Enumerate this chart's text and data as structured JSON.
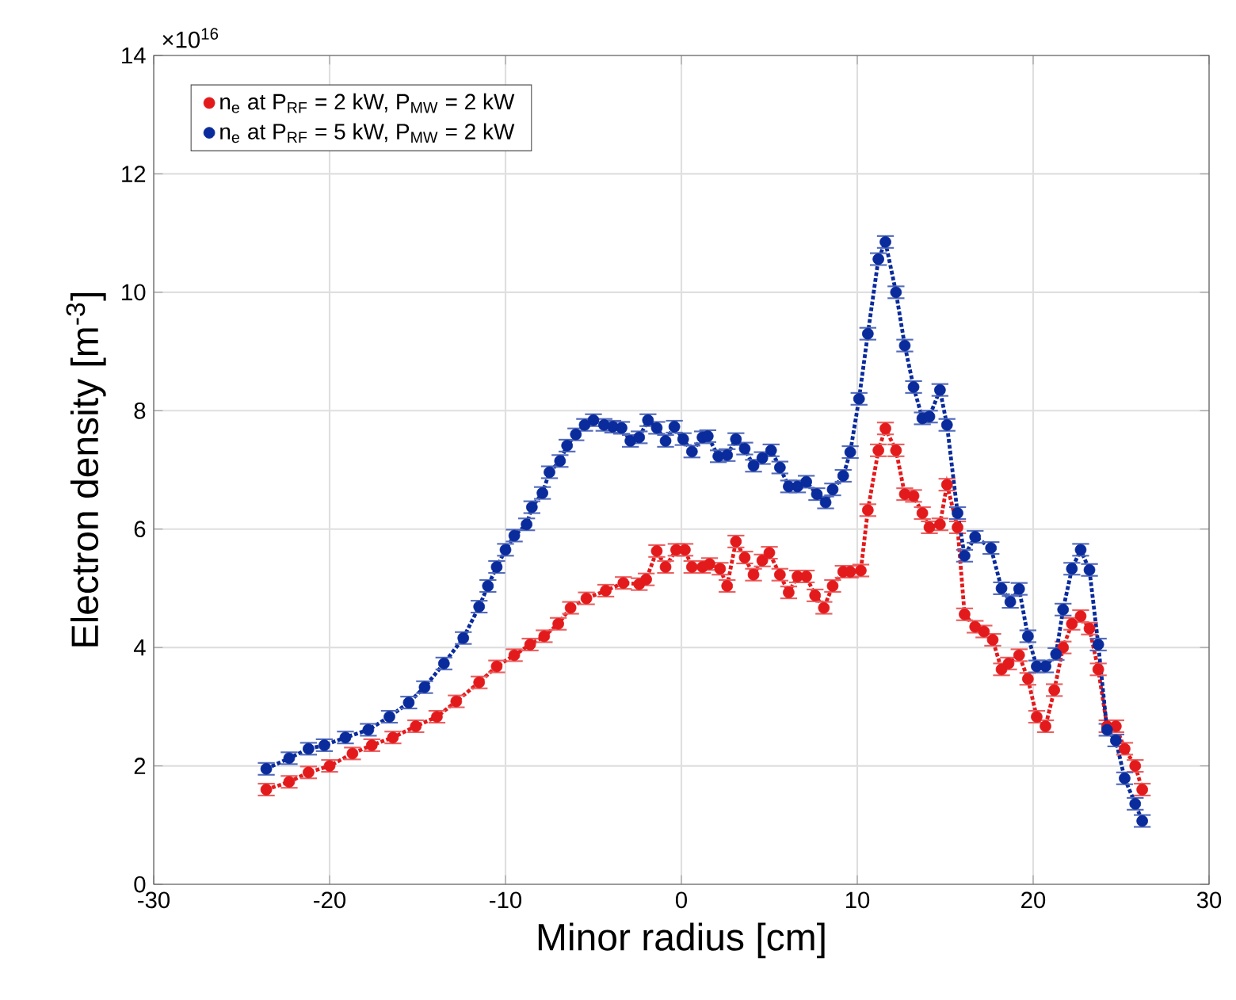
{
  "chart_data": {
    "type": "line",
    "xlabel": "Minor radius [cm]",
    "ylabel": "Electron density [m$^{-3}$]",
    "annotations": [
      "×10$^{16}$"
    ],
    "xlim": [
      -30,
      30
    ],
    "xticks": [
      -30,
      -20,
      -10,
      0,
      10,
      20,
      30
    ],
    "ylim": [
      0,
      14
    ],
    "yticks": [
      0,
      2,
      4,
      6,
      8,
      10,
      12,
      14
    ],
    "grid": true,
    "legend": "top left",
    "marker": "circle",
    "line_style": "dotted",
    "series": [
      {
        "name": "n$_{e}$ at P$_{RF}$ = 2 kW, P$_{MW}$ = 2 kW",
        "color": "#e31a1c",
        "x": [
          -23.6,
          -22.3,
          -21.2,
          -20.0,
          -18.7,
          -17.6,
          -16.4,
          -15.1,
          -13.9,
          -12.8,
          -11.5,
          -10.5,
          -9.5,
          -8.6,
          -7.8,
          -7.0,
          -6.3,
          -5.4,
          -4.3,
          -3.3,
          -2.4,
          -2.0,
          -1.4,
          -0.9,
          -0.3,
          0.2,
          0.6,
          1.2,
          1.6,
          2.2,
          2.6,
          3.1,
          3.6,
          4.1,
          4.6,
          5.0,
          5.6,
          6.1,
          6.6,
          7.1,
          7.6,
          8.1,
          8.6,
          9.2,
          9.6,
          10.2,
          10.6,
          11.2,
          11.6,
          12.2,
          12.7,
          13.2,
          13.7,
          14.1,
          14.7,
          15.1,
          15.7,
          16.1,
          16.7,
          17.2,
          17.7,
          18.2,
          18.6,
          19.2,
          19.7,
          20.2,
          20.7,
          21.2,
          21.7,
          22.2,
          22.7,
          23.2,
          23.7,
          24.2,
          24.7,
          25.2,
          25.8,
          26.2
        ],
        "values": [
          1.6,
          1.73,
          1.89,
          2.0,
          2.21,
          2.35,
          2.48,
          2.67,
          2.83,
          3.09,
          3.41,
          3.68,
          3.87,
          4.05,
          4.19,
          4.4,
          4.67,
          4.83,
          4.96,
          5.09,
          5.07,
          5.15,
          5.63,
          5.36,
          5.65,
          5.65,
          5.36,
          5.36,
          5.41,
          5.33,
          5.04,
          5.79,
          5.52,
          5.23,
          5.47,
          5.6,
          5.23,
          4.93,
          5.2,
          5.2,
          4.88,
          4.67,
          5.04,
          5.28,
          5.28,
          5.3,
          6.32,
          7.33,
          7.7,
          7.33,
          6.59,
          6.56,
          6.27,
          6.03,
          6.08,
          6.75,
          6.03,
          4.56,
          4.35,
          4.27,
          4.13,
          3.63,
          3.73,
          3.87,
          3.47,
          2.83,
          2.67,
          3.28,
          4.0,
          4.4,
          4.53,
          4.32,
          3.63,
          2.67,
          2.67,
          2.29,
          2.0,
          1.6
        ],
        "errors": [
          0.1,
          0.1,
          0.1,
          0.1,
          0.1,
          0.1,
          0.1,
          0.1,
          0.1,
          0.1,
          0.1,
          0.1,
          0.1,
          0.1,
          0.1,
          0.1,
          0.1,
          0.1,
          0.1,
          0.1,
          0.1,
          0.1,
          0.1,
          0.1,
          0.1,
          0.1,
          0.1,
          0.1,
          0.1,
          0.1,
          0.1,
          0.1,
          0.1,
          0.1,
          0.1,
          0.1,
          0.1,
          0.1,
          0.1,
          0.1,
          0.1,
          0.1,
          0.1,
          0.1,
          0.1,
          0.1,
          0.1,
          0.1,
          0.1,
          0.1,
          0.1,
          0.1,
          0.1,
          0.1,
          0.1,
          0.1,
          0.1,
          0.1,
          0.1,
          0.1,
          0.1,
          0.1,
          0.1,
          0.1,
          0.1,
          0.1,
          0.1,
          0.1,
          0.1,
          0.1,
          0.1,
          0.1,
          0.1,
          0.1,
          0.1,
          0.1,
          0.1,
          0.1
        ]
      },
      {
        "name": "n$_{e}$ at P$_{RF}$ = 5 kW, P$_{MW}$ = 2 kW",
        "color": "#0a2b9c",
        "x": [
          -23.6,
          -22.3,
          -21.2,
          -20.3,
          -19.1,
          -17.8,
          -16.6,
          -15.5,
          -14.6,
          -13.5,
          -12.4,
          -11.5,
          -11.0,
          -10.5,
          -10.0,
          -9.5,
          -8.8,
          -8.5,
          -7.9,
          -7.5,
          -6.9,
          -6.5,
          -6.0,
          -5.5,
          -5.0,
          -4.4,
          -3.9,
          -3.4,
          -2.9,
          -2.4,
          -1.9,
          -1.4,
          -0.9,
          -0.4,
          0.1,
          0.6,
          1.2,
          1.5,
          2.1,
          2.6,
          3.1,
          3.6,
          4.1,
          4.6,
          5.1,
          5.6,
          6.1,
          6.6,
          7.1,
          7.7,
          8.2,
          8.6,
          9.2,
          9.6,
          10.1,
          10.6,
          11.2,
          11.6,
          12.2,
          12.7,
          13.2,
          13.7,
          14.1,
          14.7,
          15.1,
          15.7,
          16.1,
          16.7,
          17.6,
          18.2,
          18.7,
          19.2,
          19.7,
          20.2,
          20.7,
          21.3,
          21.7,
          22.2,
          22.7,
          23.2,
          23.7,
          24.2,
          24.7,
          25.2,
          25.8,
          26.2
        ],
        "values": [
          1.95,
          2.13,
          2.29,
          2.35,
          2.48,
          2.61,
          2.83,
          3.07,
          3.33,
          3.73,
          4.16,
          4.69,
          5.04,
          5.36,
          5.65,
          5.89,
          6.08,
          6.37,
          6.61,
          6.96,
          7.15,
          7.41,
          7.6,
          7.76,
          7.84,
          7.76,
          7.73,
          7.71,
          7.49,
          7.55,
          7.84,
          7.71,
          7.49,
          7.73,
          7.52,
          7.31,
          7.55,
          7.57,
          7.23,
          7.25,
          7.52,
          7.36,
          7.07,
          7.2,
          7.33,
          7.04,
          6.72,
          6.72,
          6.8,
          6.59,
          6.45,
          6.67,
          6.9,
          7.3,
          8.2,
          9.3,
          10.56,
          10.85,
          10.0,
          9.1,
          8.4,
          7.87,
          7.9,
          8.35,
          7.76,
          6.27,
          5.55,
          5.87,
          5.68,
          5.0,
          4.77,
          4.99,
          4.19,
          3.68,
          3.68,
          3.89,
          4.64,
          5.33,
          5.65,
          5.31,
          4.05,
          2.61,
          2.43,
          1.79,
          1.36,
          1.07
        ],
        "errors": [
          0.1,
          0.1,
          0.1,
          0.1,
          0.1,
          0.1,
          0.1,
          0.1,
          0.1,
          0.1,
          0.1,
          0.1,
          0.1,
          0.1,
          0.1,
          0.1,
          0.1,
          0.1,
          0.1,
          0.1,
          0.1,
          0.1,
          0.1,
          0.1,
          0.1,
          0.1,
          0.1,
          0.1,
          0.1,
          0.1,
          0.1,
          0.1,
          0.1,
          0.1,
          0.1,
          0.1,
          0.1,
          0.1,
          0.1,
          0.1,
          0.1,
          0.1,
          0.1,
          0.1,
          0.1,
          0.1,
          0.1,
          0.1,
          0.1,
          0.1,
          0.1,
          0.1,
          0.1,
          0.1,
          0.1,
          0.1,
          0.1,
          0.1,
          0.1,
          0.1,
          0.1,
          0.1,
          0.1,
          0.1,
          0.1,
          0.1,
          0.1,
          0.1,
          0.1,
          0.1,
          0.1,
          0.1,
          0.1,
          0.1,
          0.1,
          0.1,
          0.1,
          0.1,
          0.1,
          0.1,
          0.1,
          0.1,
          0.1,
          0.1,
          0.1,
          0.1
        ]
      }
    ]
  }
}
